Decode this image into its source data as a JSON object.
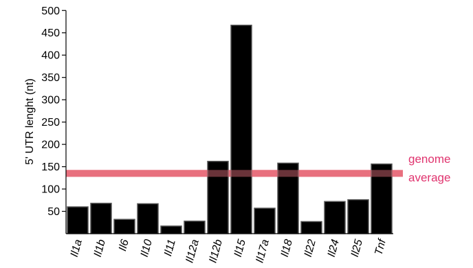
{
  "chart_data": {
    "type": "bar",
    "title": "",
    "xlabel": "",
    "ylabel": "5' UTR lenght (nt)",
    "categories": [
      "Il1a",
      "Il1b",
      "Il6",
      "Il10",
      "Il11",
      "Il12a",
      "Il12b",
      "Il15",
      "Il17a",
      "Il18",
      "Il22",
      "Il24",
      "Il25",
      "Tnf"
    ],
    "values": [
      60,
      68,
      32,
      67,
      17,
      28,
      162,
      467,
      57,
      158,
      27,
      72,
      76,
      156
    ],
    "ylim": [
      0,
      500
    ],
    "yticks": [
      50,
      100,
      150,
      200,
      250,
      300,
      350,
      400,
      450,
      500
    ],
    "grid": false,
    "reference_line": {
      "value": 135,
      "label_lines": [
        "genome",
        "average"
      ]
    },
    "colors": {
      "bar_fill": "#000000",
      "bar_edge": "#555555",
      "reference_line": "#e8707f",
      "reference_text": "#e0336e",
      "axis": "#000000"
    }
  }
}
